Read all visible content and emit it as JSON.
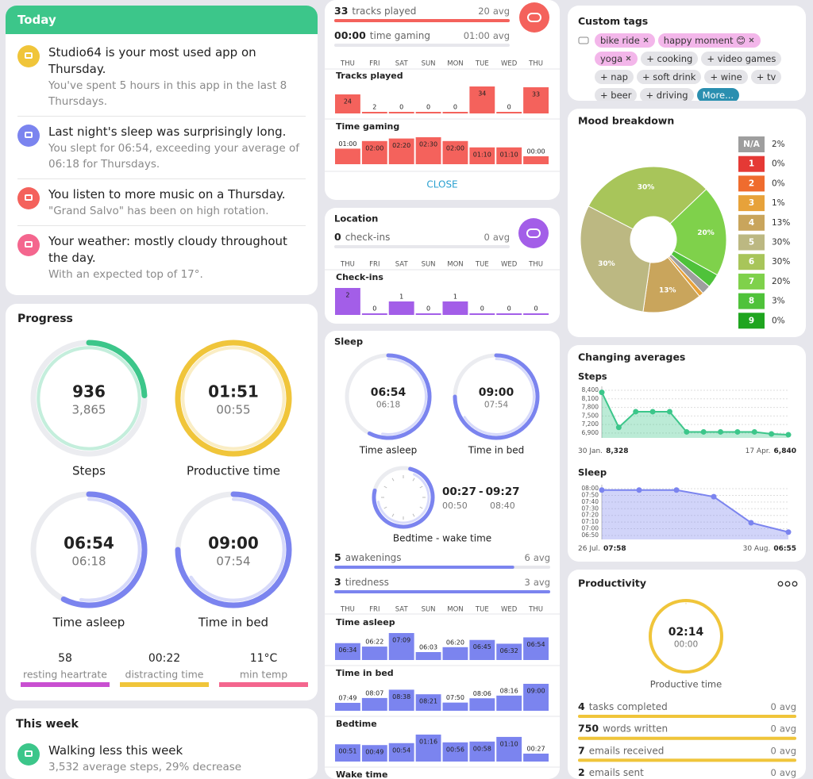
{
  "today": {
    "title": "Today",
    "color": "#3cc68a",
    "items": [
      {
        "headline": "Studio64 is your most used app on Thursday.",
        "detail": "You've spent 5 hours in this app in the last 8 Thursdays.",
        "icon_color": "#f0c53a"
      },
      {
        "headline": "Last night's sleep was surprisingly long.",
        "detail": "You slept for 06:54, exceeding your average of 06:18 for Thursdays.",
        "icon_color": "#7b84ef"
      },
      {
        "headline": "You listen to more music on a Thursday.",
        "detail": "\"Grand Salvo\" has been on high rotation.",
        "icon_color": "#f4625c"
      },
      {
        "headline": "Your weather: mostly cloudy throughout the day.",
        "detail": "With an expected top of 17°.",
        "icon_color": "#f4668e"
      }
    ]
  },
  "progress": {
    "title": "Progress",
    "rings": [
      {
        "label": "Steps",
        "value": 936,
        "average": {
          "value": 3865,
          "label": "3,865"
        },
        "color": "#3cc68a"
      },
      {
        "label": "Productive time",
        "value": {
          "value": 111,
          "label": "01:51"
        },
        "average": {
          "value": 55,
          "label": "00:55"
        },
        "color": "#f0c53a"
      },
      {
        "label": "Time asleep",
        "value": {
          "value": 414,
          "label": "06:54"
        },
        "average": {
          "value": 378,
          "label": "06:18"
        },
        "color": "#7b84ef"
      },
      {
        "label": "Time in bed",
        "value": {
          "value": 540,
          "label": "09:00"
        },
        "average": {
          "value": 474,
          "label": "07:54"
        },
        "color": "#7b84ef"
      }
    ],
    "stats": [
      {
        "value": 58,
        "label": "resting heartrate",
        "color": "#c94fd1"
      },
      {
        "value": {
          "value": 22,
          "label": "00:22"
        },
        "label": "distracting time",
        "color": "#f0c53a"
      },
      {
        "value": {
          "value": 11,
          "label": "11°C"
        },
        "label": "min temp",
        "color": "#f4668e"
      }
    ]
  },
  "this_week": {
    "title": "This week",
    "items": [
      {
        "headline": "Walking less this week",
        "detail": "3,532 average steps, 29% decrease",
        "icon_color": "#3cc68a"
      }
    ]
  },
  "days": [
    "THU",
    "FRI",
    "SAT",
    "SUN",
    "MON",
    "TUE",
    "WED",
    "THU"
  ],
  "avg_word": "avg",
  "music": {
    "color": "#f4625c",
    "rows": [
      {
        "value": 33,
        "label": "tracks played",
        "average": 20
      },
      {
        "value": {
          "value": 0,
          "label": "00:00"
        },
        "label": "time gaming",
        "average": {
          "value": 60,
          "label": "01:00"
        }
      }
    ],
    "charts": [
      {
        "title": "Tracks played",
        "values": [
          24,
          2,
          0,
          0,
          0,
          34,
          0,
          33
        ]
      },
      {
        "title": "Time gaming",
        "values": [
          60,
          120,
          140,
          150,
          120,
          70,
          70,
          0
        ],
        "value_labels": [
          "01:00",
          "02:00",
          "02:20",
          "02:30",
          "02:00",
          "01:10",
          "01:10",
          "00:00"
        ]
      }
    ],
    "action": "CLOSE"
  },
  "location": {
    "title": "Location",
    "color": "#a35ee8",
    "rows": [
      {
        "value": 0,
        "label": "check-ins",
        "average": 0
      }
    ],
    "charts": [
      {
        "title": "Check-ins",
        "values": [
          2,
          0,
          1,
          0,
          1,
          0,
          0,
          0
        ]
      }
    ]
  },
  "sleep": {
    "title": "Sleep",
    "color": "#7b84ef",
    "rings": [
      {
        "label": "Time asleep",
        "value": {
          "value": 414,
          "label": "06:54"
        },
        "average": {
          "value": 378,
          "label": "06:18"
        }
      },
      {
        "label": "Time in bed",
        "value": {
          "value": 540,
          "label": "09:00"
        },
        "average": {
          "value": 474,
          "label": "07:54"
        }
      }
    ],
    "clock": {
      "label": "Bedtime - wake time",
      "bedtime": {
        "value": 27,
        "label": "00:27"
      },
      "separator": "-",
      "wake": {
        "value": 567,
        "label": "09:27"
      },
      "avg_bedtime": {
        "value": 50,
        "label": "00:50"
      },
      "avg_wake": {
        "value": 520,
        "label": "08:40"
      }
    },
    "rows": [
      {
        "value": 5,
        "label": "awakenings",
        "average": 6
      },
      {
        "value": 3,
        "label": "tiredness",
        "average": 3
      }
    ],
    "charts": [
      {
        "title": "Time asleep",
        "values": [
          394,
          382,
          429,
          363,
          380,
          405,
          392,
          414
        ],
        "value_labels": [
          "06:34",
          "06:22",
          "07:09",
          "06:03",
          "06:20",
          "06:45",
          "06:32",
          "06:54"
        ]
      },
      {
        "title": "Time in bed",
        "values": [
          469,
          487,
          518,
          501,
          470,
          486,
          496,
          540
        ],
        "value_labels": [
          "07:49",
          "08:07",
          "08:38",
          "08:21",
          "07:50",
          "08:06",
          "08:16",
          "09:00"
        ]
      },
      {
        "title": "Bedtime",
        "values": [
          51,
          49,
          54,
          76,
          56,
          58,
          70,
          27
        ],
        "value_labels": [
          "00:51",
          "00:49",
          "00:54",
          "01:16",
          "00:56",
          "00:58",
          "01:10",
          "00:27"
        ]
      },
      {
        "title": "Wake time"
      }
    ]
  },
  "tags": {
    "title": "Custom tags",
    "selected": [
      "bike ride",
      "happy moment 😊",
      "yoga"
    ],
    "suggested": [
      "+ cooking",
      "+ video games",
      "+ nap",
      "+ soft drink",
      "+ wine",
      "+ tv",
      "+ beer",
      "+ driving"
    ],
    "more": "More..."
  },
  "mood": {
    "title": "Mood breakdown",
    "type": "pie",
    "categories": [
      "N/A",
      "1",
      "2",
      "3",
      "4",
      "5",
      "6",
      "7",
      "8",
      "9"
    ],
    "values": [
      2,
      0,
      0,
      1,
      13,
      30,
      30,
      20,
      3,
      0
    ],
    "value_labels": [
      "2%",
      "0%",
      "0%",
      "1%",
      "13%",
      "30%",
      "30%",
      "20%",
      "3%",
      "0%"
    ],
    "colors": [
      "#9e9e9e",
      "#e53935",
      "#ef6c2e",
      "#e7a23a",
      "#c9a55c",
      "#bcb882",
      "#a8c55a",
      "#7fd14b",
      "#4fc23a",
      "#1fa51f"
    ]
  },
  "averages": {
    "title": "Changing averages",
    "charts": [
      {
        "type": "area",
        "title": "Steps",
        "color": "#3cc68a",
        "categories": [
          "30 Jan.",
          null,
          null,
          null,
          null,
          null,
          null,
          null,
          null,
          null,
          null,
          "17 Apr."
        ],
        "values": [
          8328,
          7100,
          7650,
          7650,
          7650,
          6940,
          6940,
          6940,
          6940,
          6940,
          6870,
          6840
        ],
        "value_labels": [
          "8,328",
          null,
          null,
          null,
          null,
          null,
          null,
          null,
          null,
          null,
          null,
          "6,840"
        ],
        "ylim": [
          6730,
          8540
        ],
        "yticks": [
          {
            "value": 8400,
            "label": "8,400"
          },
          {
            "value": 8100,
            "label": "8,100"
          },
          {
            "value": 7800,
            "label": "7,800"
          },
          {
            "value": 7500,
            "label": "7,500"
          },
          {
            "value": 7200,
            "label": "7,200"
          },
          {
            "value": 6900,
            "label": "6,900"
          }
        ]
      },
      {
        "type": "area",
        "title": "Sleep",
        "color": "#7b84ef",
        "categories": [
          "26 Jul.",
          null,
          null,
          null,
          null,
          "30 Aug."
        ],
        "values": [
          478,
          478,
          478,
          468,
          429,
          415
        ],
        "value_labels": [
          "07:58",
          null,
          null,
          null,
          null,
          "06:55"
        ],
        "ylim": [
          404,
          486
        ],
        "yticks": [
          {
            "value": 480,
            "label": "08:00"
          },
          {
            "value": 470,
            "label": "07:50"
          },
          {
            "value": 460,
            "label": "07:40"
          },
          {
            "value": 450,
            "label": "07:30"
          },
          {
            "value": 440,
            "label": "07:20"
          },
          {
            "value": 430,
            "label": "07:10"
          },
          {
            "value": 420,
            "label": "07:00"
          },
          {
            "value": 410,
            "label": "06:50"
          }
        ]
      }
    ]
  },
  "productivity": {
    "title": "Productivity",
    "color": "#f0c53a",
    "ring": {
      "label": "Productive time",
      "value": {
        "value": 134,
        "label": "02:14"
      },
      "average": {
        "value": 0,
        "label": "00:00"
      }
    },
    "rows": [
      {
        "value": 4,
        "label": "tasks completed",
        "average": 0
      },
      {
        "value": 750,
        "label": "words written",
        "average": 0
      },
      {
        "value": 7,
        "label": "emails received",
        "average": 0
      },
      {
        "value": 2,
        "label": "emails sent",
        "average": 0
      }
    ]
  }
}
